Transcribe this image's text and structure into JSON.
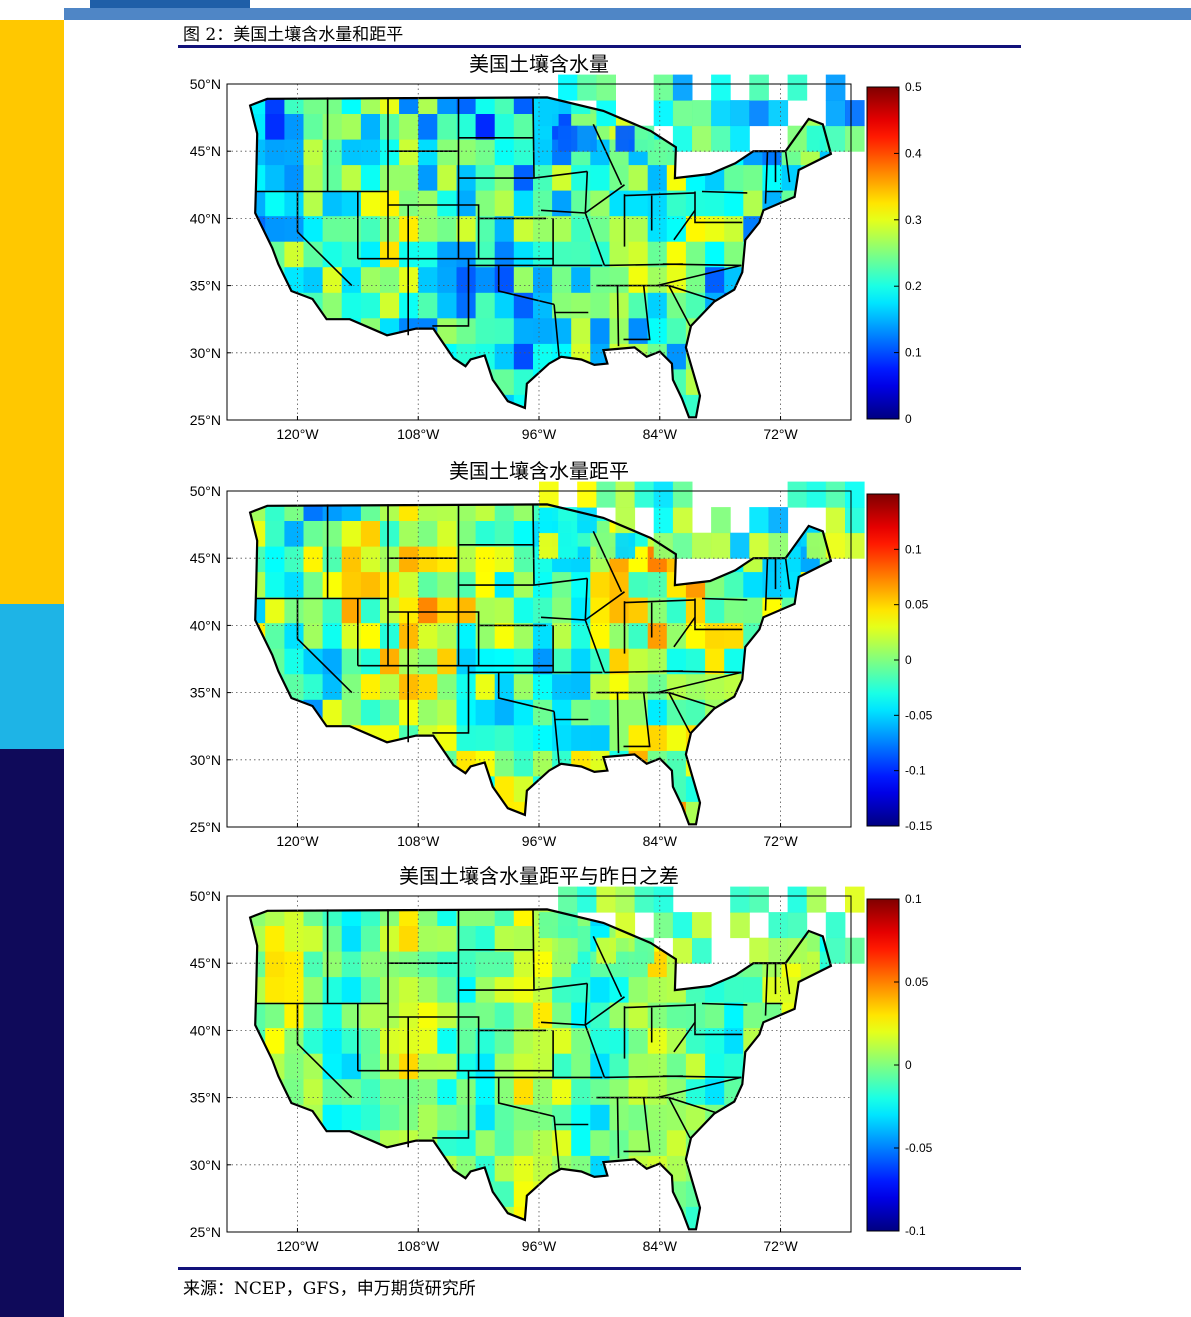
{
  "figure_title": "图 2：美国土壤含水量和距平",
  "source": "来源：NCEP，GFS，申万期货研究所",
  "brand_colors": {
    "strip_yellow": "#ffc800",
    "strip_cyan": "#1eb4e6",
    "strip_navy": "#0f0a5a",
    "rule": "#12127a"
  },
  "lat_labels": [
    "50°N",
    "45°N",
    "40°N",
    "35°N",
    "30°N",
    "25°N"
  ],
  "lon_labels": [
    "120°W",
    "108°W",
    "96°W",
    "84°W",
    "72°W"
  ],
  "panels": [
    {
      "title": "美国土壤含水量",
      "colorbar_ticks": [
        "0.5",
        "0.4",
        "0.3",
        "0.2",
        "0.1",
        "0"
      ],
      "range": [
        0,
        0.5
      ],
      "seed": 11,
      "bias": 0.45
    },
    {
      "title": "美国土壤含水量距平",
      "colorbar_ticks": [
        "0.1",
        "0.05",
        "0",
        "-0.05",
        "-0.1",
        "-0.15"
      ],
      "range": [
        -0.15,
        0.15
      ],
      "seed": 29,
      "bias": 0.58
    },
    {
      "title": "美国土壤含水量距平与昨日之差",
      "colorbar_ticks": [
        "0.1",
        "0.05",
        "0",
        "-0.05",
        "-0.1"
      ],
      "range": [
        -0.1,
        0.1
      ],
      "seed": 47,
      "bias": 0.5
    }
  ]
}
